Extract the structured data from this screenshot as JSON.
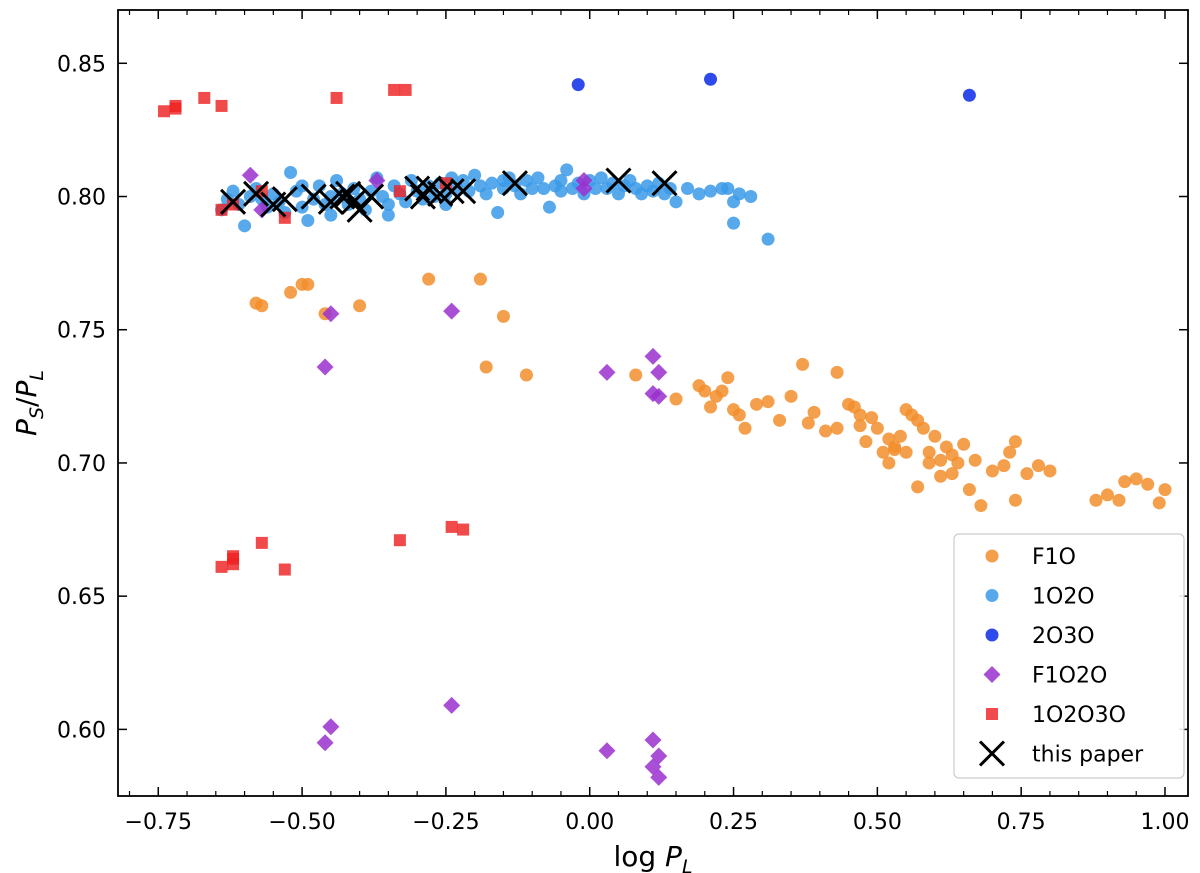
{
  "chart_data": {
    "type": "scatter",
    "title": "",
    "xlabel": "log P_L",
    "ylabel": "P_S/P_L",
    "xlim": [
      -0.82,
      1.04
    ],
    "ylim": [
      0.575,
      0.87
    ],
    "xticks": [
      -0.75,
      -0.5,
      -0.25,
      0.0,
      0.25,
      0.5,
      0.75,
      1.0
    ],
    "xtick_labels": [
      "−0.75",
      "−0.50",
      "−0.25",
      "0.00",
      "0.25",
      "0.50",
      "0.75",
      "1.00"
    ],
    "yticks": [
      0.6,
      0.65,
      0.7,
      0.75,
      0.8,
      0.85
    ],
    "ytick_labels": [
      "0.60",
      "0.65",
      "0.70",
      "0.75",
      "0.80",
      "0.85"
    ],
    "grid": false,
    "legend_position": "bottom-right",
    "series": [
      {
        "name": "F1O",
        "marker": "circle",
        "color": "#f28e2b",
        "points": [
          [
            -0.58,
            0.76
          ],
          [
            -0.57,
            0.759
          ],
          [
            -0.52,
            0.764
          ],
          [
            -0.5,
            0.767
          ],
          [
            -0.49,
            0.767
          ],
          [
            -0.46,
            0.756
          ],
          [
            -0.4,
            0.759
          ],
          [
            -0.28,
            0.769
          ],
          [
            -0.19,
            0.769
          ],
          [
            -0.15,
            0.755
          ],
          [
            -0.18,
            0.736
          ],
          [
            -0.11,
            0.733
          ],
          [
            0.08,
            0.733
          ],
          [
            0.15,
            0.724
          ],
          [
            0.19,
            0.729
          ],
          [
            0.2,
            0.727
          ],
          [
            0.21,
            0.721
          ],
          [
            0.22,
            0.725
          ],
          [
            0.23,
            0.727
          ],
          [
            0.24,
            0.732
          ],
          [
            0.25,
            0.72
          ],
          [
            0.26,
            0.718
          ],
          [
            0.27,
            0.713
          ],
          [
            0.29,
            0.722
          ],
          [
            0.31,
            0.723
          ],
          [
            0.33,
            0.716
          ],
          [
            0.35,
            0.725
          ],
          [
            0.37,
            0.737
          ],
          [
            0.38,
            0.715
          ],
          [
            0.39,
            0.719
          ],
          [
            0.41,
            0.712
          ],
          [
            0.43,
            0.734
          ],
          [
            0.45,
            0.722
          ],
          [
            0.46,
            0.721
          ],
          [
            0.47,
            0.714
          ],
          [
            0.48,
            0.708
          ],
          [
            0.49,
            0.717
          ],
          [
            0.5,
            0.713
          ],
          [
            0.51,
            0.704
          ],
          [
            0.52,
            0.709
          ],
          [
            0.53,
            0.706
          ],
          [
            0.54,
            0.71
          ],
          [
            0.55,
            0.72
          ],
          [
            0.56,
            0.718
          ],
          [
            0.57,
            0.716
          ],
          [
            0.58,
            0.713
          ],
          [
            0.59,
            0.704
          ],
          [
            0.6,
            0.71
          ],
          [
            0.61,
            0.701
          ],
          [
            0.62,
            0.706
          ],
          [
            0.63,
            0.703
          ],
          [
            0.64,
            0.7
          ],
          [
            0.55,
            0.704
          ],
          [
            0.57,
            0.691
          ],
          [
            0.59,
            0.7
          ],
          [
            0.61,
            0.695
          ],
          [
            0.63,
            0.696
          ],
          [
            0.66,
            0.69
          ],
          [
            0.68,
            0.684
          ],
          [
            0.7,
            0.697
          ],
          [
            0.72,
            0.699
          ],
          [
            0.74,
            0.708
          ],
          [
            0.76,
            0.696
          ],
          [
            0.78,
            0.699
          ],
          [
            0.8,
            0.697
          ],
          [
            0.73,
            0.704
          ],
          [
            0.74,
            0.686
          ],
          [
            0.88,
            0.686
          ],
          [
            0.9,
            0.688
          ],
          [
            0.92,
            0.686
          ],
          [
            0.93,
            0.693
          ],
          [
            0.95,
            0.694
          ],
          [
            0.97,
            0.692
          ],
          [
            0.99,
            0.685
          ],
          [
            1.0,
            0.69
          ],
          [
            0.67,
            0.701
          ],
          [
            0.65,
            0.707
          ],
          [
            0.43,
            0.713
          ],
          [
            0.47,
            0.718
          ],
          [
            0.52,
            0.7
          ],
          [
            0.53,
            0.705
          ]
        ]
      },
      {
        "name": "1O2O",
        "marker": "circle",
        "color": "#3a9ae8",
        "points": [
          [
            -0.64,
            0.795
          ],
          [
            -0.63,
            0.799
          ],
          [
            -0.62,
            0.802
          ],
          [
            -0.61,
            0.797
          ],
          [
            -0.6,
            0.789
          ],
          [
            -0.59,
            0.8
          ],
          [
            -0.58,
            0.803
          ],
          [
            -0.57,
            0.799
          ],
          [
            -0.56,
            0.796
          ],
          [
            -0.55,
            0.801
          ],
          [
            -0.54,
            0.798
          ],
          [
            -0.53,
            0.794
          ],
          [
            -0.52,
            0.809
          ],
          [
            -0.51,
            0.802
          ],
          [
            -0.5,
            0.796
          ],
          [
            -0.49,
            0.791
          ],
          [
            -0.48,
            0.799
          ],
          [
            -0.47,
            0.804
          ],
          [
            -0.46,
            0.797
          ],
          [
            -0.45,
            0.793
          ],
          [
            -0.44,
            0.806
          ],
          [
            -0.43,
            0.801
          ],
          [
            -0.42,
            0.797
          ],
          [
            -0.41,
            0.803
          ],
          [
            -0.4,
            0.799
          ],
          [
            -0.39,
            0.795
          ],
          [
            -0.38,
            0.802
          ],
          [
            -0.37,
            0.807
          ],
          [
            -0.36,
            0.8
          ],
          [
            -0.35,
            0.797
          ],
          [
            -0.34,
            0.804
          ],
          [
            -0.33,
            0.801
          ],
          [
            -0.32,
            0.798
          ],
          [
            -0.31,
            0.806
          ],
          [
            -0.3,
            0.802
          ],
          [
            -0.29,
            0.799
          ],
          [
            -0.28,
            0.804
          ],
          [
            -0.27,
            0.8
          ],
          [
            -0.26,
            0.805
          ],
          [
            -0.25,
            0.801
          ],
          [
            -0.24,
            0.807
          ],
          [
            -0.23,
            0.803
          ],
          [
            -0.22,
            0.806
          ],
          [
            -0.21,
            0.802
          ],
          [
            -0.2,
            0.808
          ],
          [
            -0.19,
            0.804
          ],
          [
            -0.18,
            0.801
          ],
          [
            -0.17,
            0.805
          ],
          [
            -0.16,
            0.794
          ],
          [
            -0.15,
            0.803
          ],
          [
            -0.14,
            0.807
          ],
          [
            -0.13,
            0.804
          ],
          [
            -0.12,
            0.801
          ],
          [
            -0.11,
            0.806
          ],
          [
            -0.1,
            0.803
          ],
          [
            -0.09,
            0.807
          ],
          [
            -0.08,
            0.803
          ],
          [
            -0.07,
            0.796
          ],
          [
            -0.06,
            0.804
          ],
          [
            -0.05,
            0.806
          ],
          [
            -0.04,
            0.81
          ],
          [
            -0.03,
            0.803
          ],
          [
            -0.02,
            0.805
          ],
          [
            -0.01,
            0.801
          ],
          [
            0.0,
            0.806
          ],
          [
            0.01,
            0.803
          ],
          [
            0.02,
            0.807
          ],
          [
            0.03,
            0.803
          ],
          [
            0.04,
            0.805
          ],
          [
            0.05,
            0.801
          ],
          [
            0.06,
            0.804
          ],
          [
            0.07,
            0.806
          ],
          [
            0.08,
            0.803
          ],
          [
            0.09,
            0.801
          ],
          [
            0.1,
            0.804
          ],
          [
            0.11,
            0.802
          ],
          [
            0.12,
            0.805
          ],
          [
            0.13,
            0.801
          ],
          [
            0.14,
            0.803
          ],
          [
            0.15,
            0.798
          ],
          [
            0.17,
            0.803
          ],
          [
            0.19,
            0.801
          ],
          [
            0.21,
            0.802
          ],
          [
            0.23,
            0.803
          ],
          [
            0.24,
            0.803
          ],
          [
            0.25,
            0.79
          ],
          [
            0.25,
            0.798
          ],
          [
            0.26,
            0.801
          ],
          [
            0.28,
            0.8
          ],
          [
            0.31,
            0.784
          ],
          [
            -0.5,
            0.804
          ],
          [
            -0.45,
            0.8
          ],
          [
            -0.35,
            0.793
          ],
          [
            -0.25,
            0.797
          ],
          [
            -0.15,
            0.806
          ],
          [
            -0.05,
            0.802
          ]
        ]
      },
      {
        "name": "2O3O",
        "marker": "circle",
        "color": "#0a2ae6",
        "points": [
          [
            -0.02,
            0.842
          ],
          [
            0.21,
            0.844
          ],
          [
            0.66,
            0.838
          ]
        ]
      },
      {
        "name": "F1O2O",
        "marker": "diamond",
        "color": "#9a30cf",
        "points": [
          [
            -0.59,
            0.808
          ],
          [
            -0.57,
            0.795
          ],
          [
            -0.45,
            0.756
          ],
          [
            -0.46,
            0.736
          ],
          [
            -0.37,
            0.806
          ],
          [
            -0.24,
            0.757
          ],
          [
            -0.01,
            0.806
          ],
          [
            -0.01,
            0.803
          ],
          [
            0.03,
            0.734
          ],
          [
            0.11,
            0.74
          ],
          [
            0.11,
            0.726
          ],
          [
            0.12,
            0.725
          ],
          [
            0.12,
            0.734
          ],
          [
            -0.46,
            0.595
          ],
          [
            -0.45,
            0.601
          ],
          [
            -0.24,
            0.609
          ],
          [
            0.03,
            0.592
          ],
          [
            0.11,
            0.596
          ],
          [
            0.11,
            0.586
          ],
          [
            0.12,
            0.59
          ],
          [
            0.12,
            0.582
          ]
        ]
      },
      {
        "name": "1O2O3O",
        "marker": "square",
        "color": "#ee2222",
        "points": [
          [
            -0.74,
            0.832
          ],
          [
            -0.72,
            0.833
          ],
          [
            -0.72,
            0.834
          ],
          [
            -0.67,
            0.837
          ],
          [
            -0.64,
            0.834
          ],
          [
            -0.44,
            0.837
          ],
          [
            -0.34,
            0.84
          ],
          [
            -0.32,
            0.84
          ],
          [
            -0.64,
            0.795
          ],
          [
            -0.62,
            0.797
          ],
          [
            -0.57,
            0.802
          ],
          [
            -0.53,
            0.792
          ],
          [
            -0.33,
            0.802
          ],
          [
            -0.25,
            0.805
          ],
          [
            -0.64,
            0.661
          ],
          [
            -0.62,
            0.664
          ],
          [
            -0.62,
            0.665
          ],
          [
            -0.62,
            0.662
          ],
          [
            -0.57,
            0.67
          ],
          [
            -0.53,
            0.66
          ],
          [
            -0.33,
            0.671
          ],
          [
            -0.24,
            0.676
          ],
          [
            -0.22,
            0.675
          ]
        ]
      },
      {
        "name": "this paper",
        "marker": "x",
        "color": "#000000",
        "points": [
          [
            -0.62,
            0.798
          ],
          [
            -0.58,
            0.801
          ],
          [
            -0.55,
            0.797
          ],
          [
            -0.53,
            0.799
          ],
          [
            -0.48,
            0.8
          ],
          [
            -0.45,
            0.798
          ],
          [
            -0.43,
            0.8
          ],
          [
            -0.42,
            0.801
          ],
          [
            -0.41,
            0.798
          ],
          [
            -0.4,
            0.795
          ],
          [
            -0.38,
            0.8
          ],
          [
            -0.3,
            0.803
          ],
          [
            -0.29,
            0.8
          ],
          [
            -0.28,
            0.803
          ],
          [
            -0.26,
            0.801
          ],
          [
            -0.24,
            0.802
          ],
          [
            -0.22,
            0.802
          ],
          [
            -0.13,
            0.805
          ],
          [
            0.05,
            0.806
          ],
          [
            0.13,
            0.805
          ]
        ]
      }
    ]
  }
}
